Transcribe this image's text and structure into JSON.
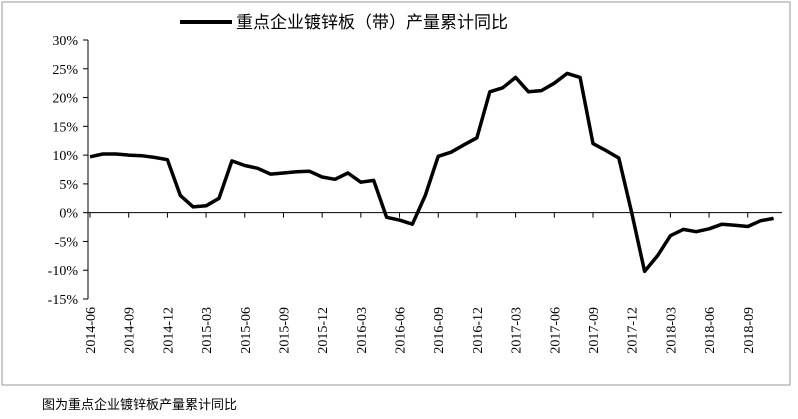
{
  "chart_data": {
    "type": "line",
    "caption": "图为重点企业镀锌板产量累计同比",
    "categories": [
      "2014-06",
      null,
      null,
      "2014-09",
      null,
      null,
      "2014-12",
      null,
      null,
      "2015-03",
      null,
      null,
      "2015-06",
      null,
      null,
      "2015-09",
      null,
      null,
      "2015-12",
      null,
      null,
      "2016-03",
      null,
      null,
      "2016-06",
      null,
      null,
      "2016-09",
      null,
      null,
      "2016-12",
      null,
      null,
      "2017-03",
      null,
      null,
      "2017-06",
      null,
      null,
      "2017-09",
      null,
      null,
      "2017-12",
      null,
      null,
      "2018-03",
      null,
      null,
      "2018-06",
      null,
      null,
      "2018-09",
      null,
      null
    ],
    "series": [
      {
        "name": "重点企业镀锌板（带）产量累计同比",
        "color": "#000000",
        "values": [
          9.7,
          10.2,
          10.2,
          10.0,
          9.9,
          9.6,
          9.2,
          3.0,
          1.0,
          1.2,
          2.5,
          9.0,
          8.2,
          7.7,
          6.7,
          6.9,
          7.1,
          7.2,
          6.2,
          5.8,
          6.9,
          5.3,
          5.6,
          -0.8,
          -1.3,
          -2.0,
          3.0,
          9.8,
          10.5,
          11.8,
          13.0,
          21.0,
          21.7,
          23.5,
          21.0,
          21.2,
          22.5,
          24.2,
          23.5,
          12.0,
          10.8,
          9.5,
          0,
          -10.2,
          -7.5,
          -4.0,
          -2.9,
          -3.3,
          -2.8,
          -2.0,
          -2.2,
          -2.4,
          -1.4,
          -1.0
        ]
      }
    ],
    "ylim": [
      -15,
      30
    ],
    "yticks": [
      {
        "value": -15,
        "label": "-15%"
      },
      {
        "value": -10,
        "label": "-10%"
      },
      {
        "value": -5,
        "label": "-5%"
      },
      {
        "value": 0,
        "label": "0%"
      },
      {
        "value": 5,
        "label": "5%"
      },
      {
        "value": 10,
        "label": "10%"
      },
      {
        "value": 15,
        "label": "15%"
      },
      {
        "value": 20,
        "label": "20%"
      },
      {
        "value": 25,
        "label": "25%"
      },
      {
        "value": 30,
        "label": "30%"
      }
    ],
    "legend": "top"
  }
}
